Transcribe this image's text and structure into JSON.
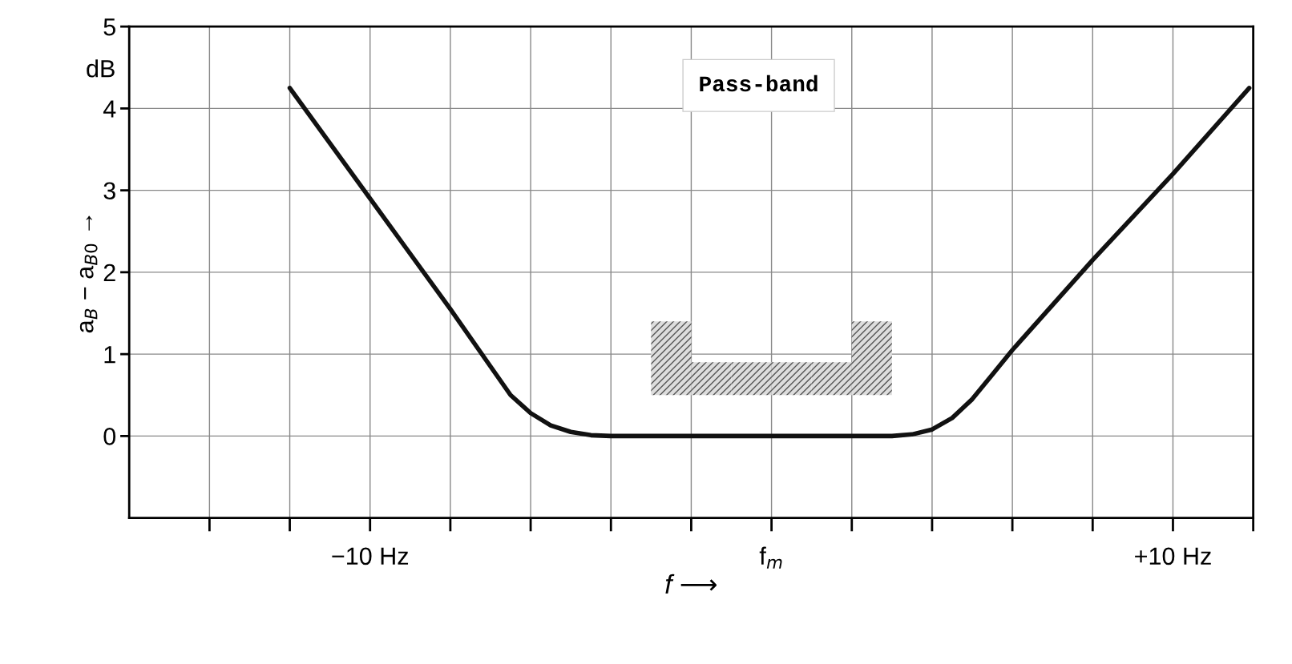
{
  "chart_data": {
    "type": "line",
    "xlabel": "f ⟶",
    "ylabel": "a$_{B}$ − a$_{B0}$ →",
    "xlim": [
      -16,
      12
    ],
    "ylim": [
      -1,
      5
    ],
    "xticks": [
      {
        "value": -14,
        "label": null
      },
      {
        "value": -12,
        "label": null
      },
      {
        "value": -10,
        "label": "−10 Hz"
      },
      {
        "value": -8,
        "label": null
      },
      {
        "value": -6,
        "label": null
      },
      {
        "value": -4,
        "label": null
      },
      {
        "value": -2,
        "label": null
      },
      {
        "value": 0,
        "label": "f$_{m}$"
      },
      {
        "value": 2,
        "label": null
      },
      {
        "value": 4,
        "label": null
      },
      {
        "value": 6,
        "label": null
      },
      {
        "value": 8,
        "label": null
      },
      {
        "value": 10,
        "label": "+10 Hz"
      },
      {
        "value": 12,
        "label": null
      }
    ],
    "yticks": [
      0,
      1,
      2,
      3,
      4,
      5
    ],
    "grid": true,
    "series": [
      {
        "color": "#111111",
        "x": [
          -12,
          -10,
          -8,
          -7,
          -6.5,
          -6,
          -5.5,
          -5,
          -4.5,
          -4,
          0,
          3,
          3.5,
          4,
          4.5,
          5,
          5.5,
          6,
          8,
          10,
          11.9
        ],
        "values": [
          4.25,
          2.9,
          1.55,
          0.85,
          0.5,
          0.28,
          0.13,
          0.05,
          0.01,
          0,
          0,
          0,
          0.02,
          0.08,
          0.22,
          0.45,
          0.75,
          1.05,
          2.15,
          3.2,
          4.25
        ]
      },
      {
        "type": "bar",
        "color": "#555555",
        "x": [
          -2.5,
          -1.5,
          -0.5,
          0.5,
          1.5,
          2.5
        ],
        "base": [
          0.5,
          0.5,
          0.5,
          0.5,
          0.5,
          0.5
        ],
        "values": [
          0.9,
          0.4,
          0.4,
          0.4,
          0.4,
          0.9
        ]
      }
    ],
    "annotations": [
      "Pass-band",
      "dB"
    ]
  }
}
